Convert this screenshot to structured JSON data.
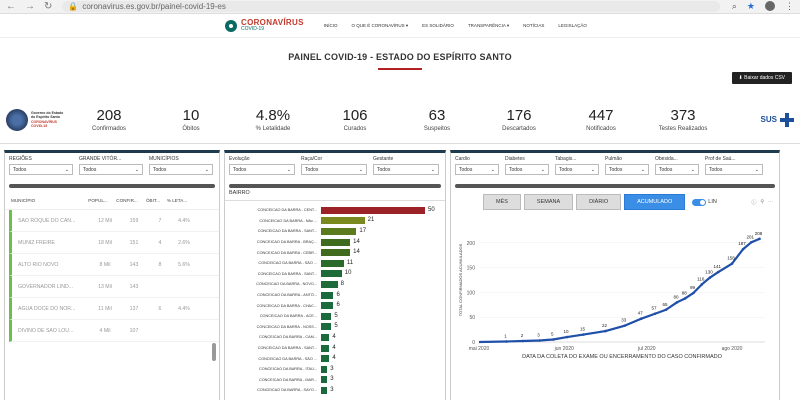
{
  "browser": {
    "url": "coronavirus.es.gov.br/painel-covid-19-es"
  },
  "header": {
    "logo_title": "CORONAVÍRUS",
    "logo_sub": "COVID-19",
    "menu": [
      "INÍCIO",
      "O QUE É CORONAVÍRUS ▾",
      "ES SOLIDÁRIO",
      "TRANSPARÊNCIA ▾",
      "NOTÍCIAS",
      "LEGISLAÇÃO"
    ]
  },
  "page_title": "PAINEL COVID-19 - ESTADO DO ESPÍRITO SANTO",
  "csv_button": "Baixar dados CSV",
  "gov": {
    "l1": "Governo do Estado",
    "l2": "do Espírito Santo",
    "l3": "CORONAVÍRUS",
    "l4": "COVID-19"
  },
  "kpis": [
    {
      "value": "208",
      "label": "Confirmados"
    },
    {
      "value": "10",
      "label": "Óbitos"
    },
    {
      "value": "4.8%",
      "label": "% Letalidade"
    },
    {
      "value": "106",
      "label": "Curados"
    },
    {
      "value": "63",
      "label": "Suspeitos"
    },
    {
      "value": "176",
      "label": "Descartados"
    },
    {
      "value": "447",
      "label": "Notificados"
    },
    {
      "value": "373",
      "label": "Testes Realizados"
    }
  ],
  "sus": "SUS",
  "filters_left": [
    {
      "label": "REGIÕES",
      "value": "Todos"
    },
    {
      "label": "GRANDE VITÓR...",
      "value": "Todos"
    },
    {
      "label": "MUNICÍPIOS",
      "value": "Todos"
    }
  ],
  "filters_mid": [
    {
      "label": "Evolução",
      "value": "Todos"
    },
    {
      "label": "Raça/Cor",
      "value": "Todos"
    },
    {
      "label": "Gestante",
      "value": "Todos"
    }
  ],
  "filters_right": [
    {
      "label": "Cardio",
      "value": "Todos"
    },
    {
      "label": "Diabetes",
      "value": "Todos"
    },
    {
      "label": "Tabagis...",
      "value": "Todos"
    },
    {
      "label": "Pulmão",
      "value": "Todos"
    },
    {
      "label": "Obesida...",
      "value": "Todos"
    },
    {
      "label": "Prof de Saú...",
      "value": "Todos"
    }
  ],
  "table": {
    "headers": [
      "MUNICÍPIO",
      "POPUL...",
      "CONFIR...",
      "ÓBIT...",
      "% LETA..."
    ],
    "rows": [
      [
        "SÃO ROQUE DO CAN...",
        "12 Mil",
        "159",
        "7",
        "4.4%"
      ],
      [
        "MUNIZ FREIRE",
        "18 Mil",
        "151",
        "4",
        "2.6%"
      ],
      [
        "ALTO RIO NOVO",
        "8 Mil",
        "143",
        "8",
        "5.6%"
      ],
      [
        "GOVERNADOR LIND...",
        "13 Mil",
        "143",
        "",
        ""
      ],
      [
        "ÁGUA DOCE DO NOR...",
        "11 Mil",
        "137",
        "6",
        "4.4%"
      ],
      [
        "DIVINO DE SÃO LOU...",
        "4 Mil",
        "107",
        "",
        ""
      ]
    ]
  },
  "bars": {
    "title": "BAIRRO",
    "max": 50,
    "items": [
      {
        "label": "CONCEICAO DA BARRA - CENT...",
        "value": 50,
        "color": "#9b2226"
      },
      {
        "label": "CONCEICAO DA BARRA - Não ...",
        "value": 21,
        "color": "#7a8a1e"
      },
      {
        "label": "CONCEICAO DA BARRA - SANT...",
        "value": 17,
        "color": "#5c7a1e"
      },
      {
        "label": "CONCEICAO DA BARRA - BRAÇ...",
        "value": 14,
        "color": "#3f6b1e"
      },
      {
        "label": "CONCEICAO DA BARRA - CEBR...",
        "value": 14,
        "color": "#3f6b1e"
      },
      {
        "label": "CONCEICAO DA BARRA - SÃO ...",
        "value": 11,
        "color": "#2a6a2a"
      },
      {
        "label": "CONCEICAO DA BARRA - SANT...",
        "value": 10,
        "color": "#1e6b3a"
      },
      {
        "label": "CONCEICAO DA BARRA - NOVO...",
        "value": 8,
        "color": "#1e6b3a"
      },
      {
        "label": "CONCEICAO DA BARRA - ANTÔ...",
        "value": 6,
        "color": "#1a6a3e"
      },
      {
        "label": "CONCEICAO DA BARRA - CHAC...",
        "value": 6,
        "color": "#1a6a3e"
      },
      {
        "label": "CONCEICAO DA BARRA - ACE...",
        "value": 5,
        "color": "#1a6a3e"
      },
      {
        "label": "CONCEICAO DA BARRA - NOSS...",
        "value": 5,
        "color": "#1a6a3e"
      },
      {
        "label": "CONCEICAO DA BARRA - CAM...",
        "value": 4,
        "color": "#1a6a3e"
      },
      {
        "label": "CONCEICAO DA BARRA - SANT...",
        "value": 4,
        "color": "#1a6a3e"
      },
      {
        "label": "CONCEICAO DA BARRA - SÃO ...",
        "value": 4,
        "color": "#1a6a3e"
      },
      {
        "label": "CONCEICAO DA BARRA - ITAÚ...",
        "value": 3,
        "color": "#1a6a3e"
      },
      {
        "label": "CONCEICAO DA BARRA - MAR...",
        "value": 3,
        "color": "#1a6a3e"
      },
      {
        "label": "CONCEICAO DA BARRA - SAYO...",
        "value": 3,
        "color": "#1a6a3e"
      }
    ]
  },
  "tabs": [
    "MÊS",
    "SEMANA",
    "DIÁRIO",
    "ACUMULADO"
  ],
  "active_tab": "ACUMULADO",
  "toggle_label": "LIN",
  "chart_data": {
    "type": "line",
    "xlabel": "DATA DA COLETA DO EXAME OU ENCERRAMENTO DO CASO CONFIRMADO",
    "ylabel": "TOTAL CONFIRMADOS ACUMULADOS",
    "ylim": [
      0,
      250
    ],
    "yticks": [
      0,
      50,
      100,
      150,
      200
    ],
    "xticks": [
      {
        "label": "mai 2020",
        "at": 0
      },
      {
        "label": "jun 2020",
        "at": 31
      },
      {
        "label": "jul 2020",
        "at": 61
      },
      {
        "label": "ago 2020",
        "at": 92
      }
    ],
    "xmax": 104,
    "points": [
      {
        "x": 10,
        "y": 1
      },
      {
        "x": 16,
        "y": 2
      },
      {
        "x": 22,
        "y": 3
      },
      {
        "x": 27,
        "y": 5
      },
      {
        "x": 32,
        "y": 10
      },
      {
        "x": 38,
        "y": 15
      },
      {
        "x": 46,
        "y": 22
      },
      {
        "x": 53,
        "y": 33
      },
      {
        "x": 59,
        "y": 47
      },
      {
        "x": 64,
        "y": 57
      },
      {
        "x": 68,
        "y": 65
      },
      {
        "x": 72,
        "y": 80
      },
      {
        "x": 75,
        "y": 88
      },
      {
        "x": 78,
        "y": 99
      },
      {
        "x": 81,
        "y": 116
      },
      {
        "x": 84,
        "y": 130
      },
      {
        "x": 87,
        "y": 141
      },
      {
        "x": 92,
        "y": 158
      },
      {
        "x": 96,
        "y": 187
      },
      {
        "x": 99,
        "y": 201
      },
      {
        "x": 102,
        "y": 208
      }
    ],
    "point_labels": [
      "1",
      "2",
      "3",
      "5",
      "10",
      "15",
      "22",
      "33",
      "47",
      "57",
      "65",
      "80",
      "88",
      "99",
      "116",
      "130",
      "141",
      "158",
      "187",
      "201",
      "208"
    ],
    "color": "#1f4fa8"
  }
}
